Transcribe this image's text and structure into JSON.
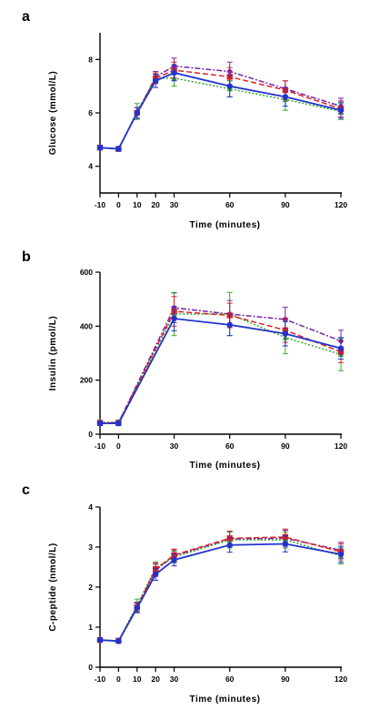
{
  "chart_data": [
    {
      "type": "line",
      "panel": "a",
      "xlabel": "Time (minutes)",
      "ylabel": "Glucose (mmol/L)",
      "xlim": [
        -10,
        120
      ],
      "ylim": [
        3,
        9
      ],
      "xticks": [
        -10,
        0,
        10,
        20,
        30,
        60,
        90,
        120
      ],
      "yticks": [
        4,
        6,
        8
      ],
      "x": [
        -10,
        0,
        10,
        20,
        30,
        60,
        90,
        120
      ],
      "series": [
        {
          "color": "#2233cc",
          "dash": "",
          "marker": "circle",
          "values": [
            4.7,
            4.65,
            6.0,
            7.2,
            7.5,
            7.0,
            6.6,
            6.1
          ],
          "errors": [
            0.08,
            0.08,
            0.2,
            0.25,
            0.3,
            0.4,
            0.35,
            0.3
          ]
        },
        {
          "color": "#dd2222",
          "dash": "6,3",
          "marker": "square",
          "values": [
            4.7,
            4.65,
            6.0,
            7.3,
            7.6,
            7.35,
            6.85,
            6.15
          ],
          "errors": [
            0.08,
            0.08,
            0.2,
            0.2,
            0.3,
            0.35,
            0.35,
            0.3
          ]
        },
        {
          "color": "#33aa33",
          "dash": "2,2",
          "marker": "triangle",
          "values": [
            4.7,
            4.65,
            6.05,
            7.3,
            7.3,
            6.9,
            6.5,
            6.05
          ],
          "errors": [
            0.08,
            0.08,
            0.3,
            0.2,
            0.3,
            0.3,
            0.4,
            0.3
          ]
        },
        {
          "color": "#7722aa",
          "dash": "6,2,2,2",
          "marker": "diamond",
          "values": [
            4.7,
            4.65,
            6.0,
            7.35,
            7.75,
            7.55,
            6.9,
            6.25
          ],
          "errors": [
            0.08,
            0.08,
            0.2,
            0.2,
            0.3,
            0.35,
            0.3,
            0.3
          ]
        }
      ]
    },
    {
      "type": "line",
      "panel": "b",
      "xlabel": "Time (minutes)",
      "ylabel": "Insulin (pmol/L)",
      "xlim": [
        -10,
        120
      ],
      "ylim": [
        0,
        600
      ],
      "xticks": [
        -10,
        0,
        30,
        60,
        90,
        120
      ],
      "yticks": [
        0,
        200,
        400,
        600
      ],
      "x": [
        -10,
        0,
        30,
        60,
        90,
        120
      ],
      "series": [
        {
          "color": "#2233cc",
          "dash": "",
          "marker": "circle",
          "values": [
            40,
            40,
            428,
            405,
            372,
            318
          ],
          "errors": [
            8,
            8,
            45,
            40,
            45,
            40
          ]
        },
        {
          "color": "#dd2222",
          "dash": "6,3",
          "marker": "square",
          "values": [
            42,
            42,
            455,
            440,
            385,
            305
          ],
          "errors": [
            8,
            8,
            55,
            45,
            45,
            40
          ]
        },
        {
          "color": "#33aa33",
          "dash": "2,2",
          "marker": "triangle",
          "values": [
            44,
            44,
            445,
            445,
            358,
            295
          ],
          "errors": [
            8,
            8,
            80,
            80,
            60,
            60
          ]
        },
        {
          "color": "#7722aa",
          "dash": "6,2,2,2",
          "marker": "diamond",
          "values": [
            43,
            43,
            468,
            445,
            425,
            345
          ],
          "errors": [
            8,
            8,
            55,
            50,
            45,
            40
          ]
        }
      ]
    },
    {
      "type": "line",
      "panel": "c",
      "xlabel": "Time (minutes)",
      "ylabel": "C-peptide (nmol/L)",
      "xlim": [
        -10,
        120
      ],
      "ylim": [
        0,
        4
      ],
      "xticks": [
        -10,
        0,
        10,
        20,
        30,
        60,
        90,
        120
      ],
      "yticks": [
        0,
        1,
        2,
        3,
        4
      ],
      "x": [
        -10,
        0,
        10,
        20,
        30,
        60,
        90,
        120
      ],
      "series": [
        {
          "color": "#2233cc",
          "dash": "",
          "marker": "circle",
          "values": [
            0.68,
            0.65,
            1.48,
            2.32,
            2.68,
            3.05,
            3.08,
            2.82
          ],
          "errors": [
            0.05,
            0.05,
            0.12,
            0.15,
            0.15,
            0.18,
            0.2,
            0.2
          ]
        },
        {
          "color": "#dd2222",
          "dash": "6,3",
          "marker": "square",
          "values": [
            0.68,
            0.66,
            1.5,
            2.45,
            2.8,
            3.22,
            3.25,
            2.88
          ],
          "errors": [
            0.05,
            0.05,
            0.12,
            0.15,
            0.15,
            0.18,
            0.2,
            0.2
          ]
        },
        {
          "color": "#33aa33",
          "dash": "2,2",
          "marker": "triangle",
          "values": [
            0.68,
            0.66,
            1.55,
            2.48,
            2.75,
            3.18,
            3.18,
            2.78
          ],
          "errors": [
            0.05,
            0.05,
            0.15,
            0.15,
            0.15,
            0.2,
            0.2,
            0.2
          ]
        },
        {
          "color": "#7722aa",
          "dash": "6,2,2,2",
          "marker": "diamond",
          "values": [
            0.68,
            0.66,
            1.5,
            2.42,
            2.78,
            3.2,
            3.22,
            2.92
          ],
          "errors": [
            0.05,
            0.05,
            0.12,
            0.15,
            0.15,
            0.18,
            0.2,
            0.2
          ]
        }
      ]
    }
  ]
}
